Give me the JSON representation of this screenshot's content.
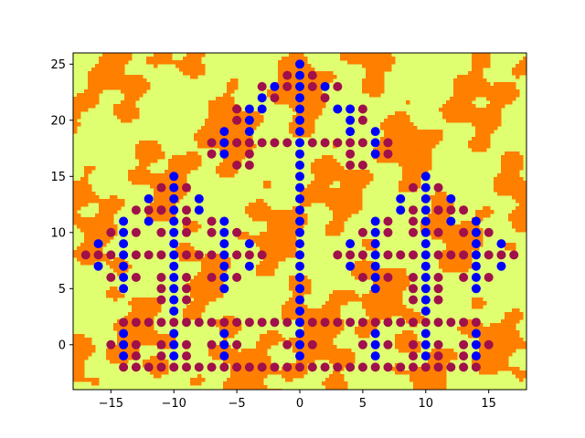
{
  "chart_data": {
    "type": "scatter",
    "title": "",
    "xlabel": "",
    "ylabel": "",
    "xlim": [
      -18,
      18
    ],
    "ylim": [
      -4,
      26
    ],
    "xticks": [
      -15,
      -10,
      -5,
      0,
      5,
      10,
      15
    ],
    "yticks": [
      0,
      5,
      10,
      15,
      20,
      25
    ],
    "grid": false,
    "legend": "none",
    "background": {
      "kind": "filled-contour",
      "colors": [
        "#ff7f00",
        "#dfff70"
      ]
    },
    "series": [
      {
        "color": "#0000ff",
        "points": [
          [
            0,
            25
          ],
          [
            0,
            24
          ],
          [
            0,
            23
          ],
          [
            0,
            22
          ],
          [
            0,
            21
          ],
          [
            0,
            20
          ],
          [
            0,
            19
          ],
          [
            0,
            18
          ],
          [
            0,
            17
          ],
          [
            0,
            16
          ],
          [
            0,
            15
          ],
          [
            0,
            14
          ],
          [
            0,
            13
          ],
          [
            0,
            12
          ],
          [
            0,
            11
          ],
          [
            0,
            10
          ],
          [
            0,
            9
          ],
          [
            0,
            8
          ],
          [
            0,
            7
          ],
          [
            0,
            6
          ],
          [
            0,
            5
          ],
          [
            0,
            4
          ],
          [
            0,
            3
          ],
          [
            0,
            2
          ],
          [
            0,
            1
          ],
          [
            0,
            0
          ],
          [
            0,
            -1
          ],
          [
            -2,
            23
          ],
          [
            2,
            23
          ],
          [
            -3,
            22
          ],
          [
            -3,
            21
          ],
          [
            3,
            21
          ],
          [
            -4,
            21
          ],
          [
            4,
            21
          ],
          [
            -4,
            20
          ],
          [
            4,
            20
          ],
          [
            -4,
            19
          ],
          [
            4,
            19
          ],
          [
            -6,
            19
          ],
          [
            6,
            19
          ],
          [
            -6,
            18
          ],
          [
            6,
            18
          ],
          [
            -6,
            17
          ],
          [
            6,
            17
          ],
          [
            -10,
            15
          ],
          [
            -10,
            14
          ],
          [
            -10,
            13
          ],
          [
            -10,
            12
          ],
          [
            -10,
            11
          ],
          [
            -10,
            10
          ],
          [
            -10,
            9
          ],
          [
            -10,
            8
          ],
          [
            -10,
            7
          ],
          [
            -10,
            6
          ],
          [
            -10,
            5
          ],
          [
            -10,
            4
          ],
          [
            -10,
            3
          ],
          [
            10,
            15
          ],
          [
            10,
            14
          ],
          [
            10,
            13
          ],
          [
            10,
            12
          ],
          [
            10,
            11
          ],
          [
            10,
            10
          ],
          [
            10,
            9
          ],
          [
            10,
            8
          ],
          [
            10,
            7
          ],
          [
            10,
            6
          ],
          [
            10,
            5
          ],
          [
            10,
            4
          ],
          [
            10,
            3
          ],
          [
            -8,
            13
          ],
          [
            -8,
            12
          ],
          [
            8,
            13
          ],
          [
            8,
            12
          ],
          [
            -12,
            13
          ],
          [
            -12,
            11
          ],
          [
            12,
            13
          ],
          [
            12,
            11
          ],
          [
            -14,
            11
          ],
          [
            -14,
            10
          ],
          [
            -14,
            9
          ],
          [
            -14,
            8
          ],
          [
            -14,
            7
          ],
          [
            -14,
            6
          ],
          [
            -14,
            5
          ],
          [
            14,
            11
          ],
          [
            14,
            10
          ],
          [
            14,
            9
          ],
          [
            14,
            8
          ],
          [
            14,
            7
          ],
          [
            14,
            6
          ],
          [
            14,
            5
          ],
          [
            -16,
            9
          ],
          [
            -16,
            7
          ],
          [
            16,
            9
          ],
          [
            16,
            7
          ],
          [
            -6,
            11
          ],
          [
            -6,
            10
          ],
          [
            -6,
            9
          ],
          [
            -6,
            8
          ],
          [
            -6,
            7
          ],
          [
            -6,
            6
          ],
          [
            -6,
            5
          ],
          [
            6,
            11
          ],
          [
            6,
            10
          ],
          [
            6,
            9
          ],
          [
            6,
            8
          ],
          [
            6,
            7
          ],
          [
            6,
            6
          ],
          [
            6,
            5
          ],
          [
            -4,
            9
          ],
          [
            -4,
            7
          ],
          [
            4,
            9
          ],
          [
            4,
            7
          ],
          [
            -14,
            1
          ],
          [
            -14,
            0
          ],
          [
            -14,
            -1
          ],
          [
            14,
            1
          ],
          [
            14,
            0
          ],
          [
            14,
            -1
          ],
          [
            -10,
            1
          ],
          [
            -10,
            0
          ],
          [
            -10,
            -1
          ],
          [
            10,
            1
          ],
          [
            10,
            0
          ],
          [
            10,
            -1
          ],
          [
            -6,
            1
          ],
          [
            -6,
            0
          ],
          [
            -6,
            -1
          ],
          [
            6,
            1
          ],
          [
            6,
            0
          ],
          [
            6,
            -1
          ]
        ]
      },
      {
        "color": "#a0104a",
        "points": [
          [
            -1,
            24
          ],
          [
            1,
            24
          ],
          [
            -1,
            23
          ],
          [
            1,
            23
          ],
          [
            -2,
            22
          ],
          [
            2,
            22
          ],
          [
            -3,
            23
          ],
          [
            3,
            23
          ],
          [
            -5,
            20
          ],
          [
            5,
            20
          ],
          [
            -5,
            21
          ],
          [
            5,
            21
          ],
          [
            -7,
            18
          ],
          [
            -6,
            18
          ],
          [
            -5,
            18
          ],
          [
            -4,
            18
          ],
          [
            -3,
            18
          ],
          [
            -2,
            18
          ],
          [
            -1,
            18
          ],
          [
            1,
            18
          ],
          [
            2,
            18
          ],
          [
            3,
            18
          ],
          [
            4,
            18
          ],
          [
            5,
            18
          ],
          [
            7,
            18
          ],
          [
            -5,
            16
          ],
          [
            5,
            16
          ],
          [
            -7,
            17
          ],
          [
            7,
            17
          ],
          [
            -4,
            17
          ],
          [
            4,
            17
          ],
          [
            -4,
            16
          ],
          [
            4,
            16
          ],
          [
            -11,
            14
          ],
          [
            -9,
            14
          ],
          [
            11,
            14
          ],
          [
            9,
            14
          ],
          [
            -11,
            12
          ],
          [
            -9,
            12
          ],
          [
            11,
            12
          ],
          [
            9,
            12
          ],
          [
            -13,
            12
          ],
          [
            -12,
            12
          ],
          [
            -11,
            12
          ],
          [
            13,
            12
          ],
          [
            12,
            12
          ],
          [
            11,
            12
          ],
          [
            -9,
            11
          ],
          [
            9,
            11
          ],
          [
            -7,
            11
          ],
          [
            7,
            11
          ],
          [
            -15,
            10
          ],
          [
            -13,
            10
          ],
          [
            -11,
            10
          ],
          [
            -9,
            10
          ],
          [
            -7,
            10
          ],
          [
            -5,
            10
          ],
          [
            15,
            10
          ],
          [
            13,
            10
          ],
          [
            11,
            10
          ],
          [
            9,
            10
          ],
          [
            7,
            10
          ],
          [
            5,
            10
          ],
          [
            -17,
            8
          ],
          [
            -16,
            8
          ],
          [
            -15,
            8
          ],
          [
            -13,
            8
          ],
          [
            -12,
            8
          ],
          [
            -11,
            8
          ],
          [
            -9,
            8
          ],
          [
            -8,
            8
          ],
          [
            -7,
            8
          ],
          [
            -5,
            8
          ],
          [
            -4,
            8
          ],
          [
            -3,
            8
          ],
          [
            17,
            8
          ],
          [
            16,
            8
          ],
          [
            15,
            8
          ],
          [
            13,
            8
          ],
          [
            12,
            8
          ],
          [
            11,
            8
          ],
          [
            9,
            8
          ],
          [
            8,
            8
          ],
          [
            7,
            8
          ],
          [
            5,
            8
          ],
          [
            4,
            8
          ],
          [
            3,
            8
          ],
          [
            -15,
            6
          ],
          [
            -13,
            6
          ],
          [
            -11,
            6
          ],
          [
            -9,
            6
          ],
          [
            -7,
            6
          ],
          [
            -5,
            6
          ],
          [
            15,
            6
          ],
          [
            13,
            6
          ],
          [
            11,
            6
          ],
          [
            9,
            6
          ],
          [
            7,
            6
          ],
          [
            5,
            6
          ],
          [
            -11,
            4
          ],
          [
            -9,
            4
          ],
          [
            11,
            4
          ],
          [
            9,
            4
          ],
          [
            -11,
            5
          ],
          [
            -9,
            5
          ],
          [
            11,
            5
          ],
          [
            9,
            5
          ],
          [
            -14,
            2
          ],
          [
            -13,
            2
          ],
          [
            -12,
            2
          ],
          [
            -11,
            2
          ],
          [
            -10,
            2
          ],
          [
            -9,
            2
          ],
          [
            -8,
            2
          ],
          [
            -7,
            2
          ],
          [
            -6,
            2
          ],
          [
            -5,
            2
          ],
          [
            -4,
            2
          ],
          [
            -3,
            2
          ],
          [
            -2,
            2
          ],
          [
            -1,
            2
          ],
          [
            0,
            2
          ],
          [
            1,
            2
          ],
          [
            2,
            2
          ],
          [
            3,
            2
          ],
          [
            4,
            2
          ],
          [
            5,
            2
          ],
          [
            6,
            2
          ],
          [
            7,
            2
          ],
          [
            8,
            2
          ],
          [
            9,
            2
          ],
          [
            10,
            2
          ],
          [
            11,
            2
          ],
          [
            12,
            2
          ],
          [
            13,
            2
          ],
          [
            14,
            2
          ],
          [
            -15,
            0
          ],
          [
            -13,
            0
          ],
          [
            -11,
            0
          ],
          [
            -9,
            0
          ],
          [
            -7,
            0
          ],
          [
            -5,
            0
          ],
          [
            -1,
            0
          ],
          [
            1,
            0
          ],
          [
            5,
            0
          ],
          [
            7,
            0
          ],
          [
            9,
            0
          ],
          [
            11,
            0
          ],
          [
            13,
            0
          ],
          [
            15,
            0
          ],
          [
            -14,
            -2
          ],
          [
            -13,
            -2
          ],
          [
            -12,
            -2
          ],
          [
            -11,
            -2
          ],
          [
            -10,
            -2
          ],
          [
            -9,
            -2
          ],
          [
            -8,
            -2
          ],
          [
            -7,
            -2
          ],
          [
            -6,
            -2
          ],
          [
            -5,
            -2
          ],
          [
            -4,
            -2
          ],
          [
            -3,
            -2
          ],
          [
            -2,
            -2
          ],
          [
            -1,
            -2
          ],
          [
            0,
            -2
          ],
          [
            1,
            -2
          ],
          [
            2,
            -2
          ],
          [
            3,
            -2
          ],
          [
            4,
            -2
          ],
          [
            5,
            -2
          ],
          [
            6,
            -2
          ],
          [
            7,
            -2
          ],
          [
            8,
            -2
          ],
          [
            9,
            -2
          ],
          [
            10,
            -2
          ],
          [
            11,
            -2
          ],
          [
            12,
            -2
          ],
          [
            13,
            -2
          ],
          [
            14,
            -2
          ],
          [
            -13,
            -1
          ],
          [
            13,
            -1
          ],
          [
            -11,
            -1
          ],
          [
            11,
            -1
          ],
          [
            -9,
            -1
          ],
          [
            9,
            -1
          ]
        ]
      }
    ]
  }
}
